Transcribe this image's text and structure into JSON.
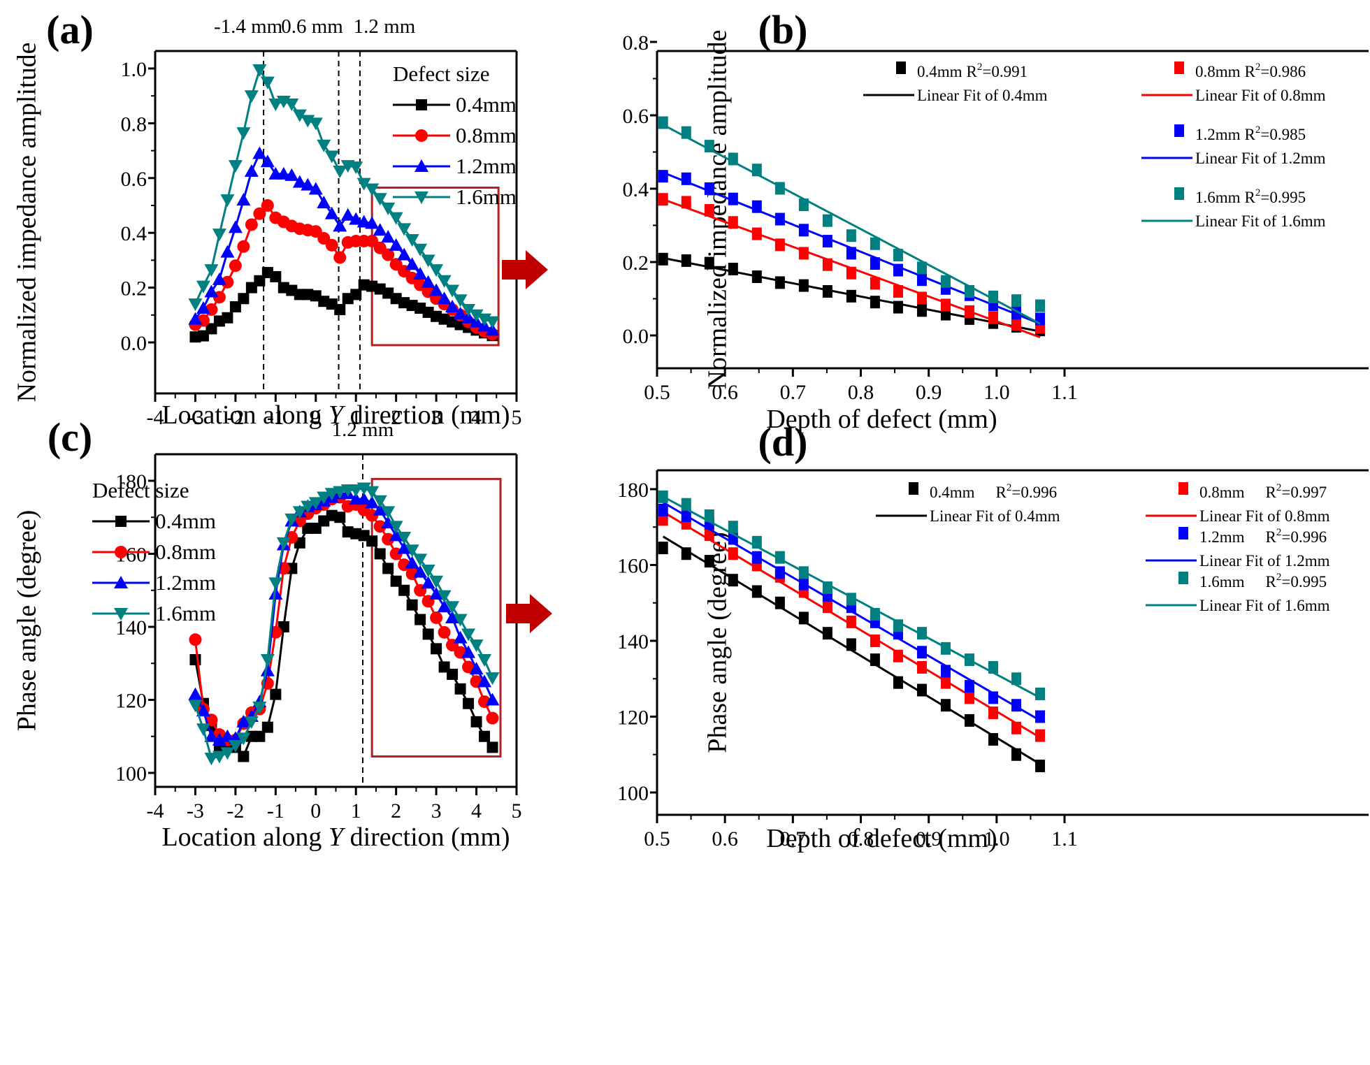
{
  "chart_data": [
    {
      "id": "a",
      "panel_label": "(a)",
      "type": "line",
      "xlabel_pre": "Location along ",
      "xlabel_italic": "Y",
      "xlabel_post": " direction (mm)",
      "ylabel": "Normalized impedance amplitude",
      "xlim": [
        -4,
        5
      ],
      "ylim": [
        -0.12,
        1.12
      ],
      "xticks": [
        -4,
        -3,
        -2,
        -1,
        0,
        1,
        2,
        3,
        4,
        5
      ],
      "yticks": [
        0.0,
        0.2,
        0.4,
        0.6,
        0.8,
        1.0
      ],
      "ytick_labels": [
        "0.0",
        "0.2",
        "0.4",
        "0.6",
        "0.8",
        "1.0"
      ],
      "vlines": [
        {
          "x": -1.3,
          "label": "-1.4 mm"
        },
        {
          "x": 0.57,
          "label": "0.6 mm"
        },
        {
          "x": 1.1,
          "label": "1.2 mm"
        }
      ],
      "highlight_box": {
        "x": [
          1.4,
          4.55
        ],
        "y": [
          -0.01,
          0.565
        ]
      },
      "legend": {
        "title": "Defect size",
        "placement": "top-right"
      },
      "x": [
        -3.0,
        -2.8,
        -2.6,
        -2.4,
        -2.2,
        -2.0,
        -1.8,
        -1.6,
        -1.4,
        -1.2,
        -1.0,
        -0.8,
        -0.6,
        -0.4,
        -0.2,
        0.0,
        0.2,
        0.4,
        0.6,
        0.8,
        1.0,
        1.2,
        1.4,
        1.6,
        1.8,
        2.0,
        2.2,
        2.4,
        2.6,
        2.8,
        3.0,
        3.2,
        3.4,
        3.6,
        3.8,
        4.0,
        4.2,
        4.4
      ],
      "series": [
        {
          "name": "0.4mm",
          "color": "#000000",
          "marker": "square",
          "values": [
            0.02,
            0.024,
            0.05,
            0.078,
            0.09,
            0.13,
            0.16,
            0.2,
            0.225,
            0.255,
            0.24,
            0.2,
            0.19,
            0.175,
            0.175,
            0.17,
            0.15,
            0.14,
            0.12,
            0.16,
            0.175,
            0.21,
            0.205,
            0.195,
            0.18,
            0.16,
            0.145,
            0.135,
            0.125,
            0.11,
            0.095,
            0.085,
            0.075,
            0.065,
            0.055,
            0.045,
            0.035,
            0.025
          ]
        },
        {
          "name": "0.8mm",
          "color": "#ff0000",
          "marker": "circle",
          "values": [
            0.065,
            0.08,
            0.12,
            0.165,
            0.22,
            0.28,
            0.35,
            0.43,
            0.47,
            0.5,
            0.455,
            0.44,
            0.425,
            0.415,
            0.41,
            0.405,
            0.38,
            0.355,
            0.31,
            0.365,
            0.37,
            0.37,
            0.37,
            0.345,
            0.32,
            0.285,
            0.26,
            0.235,
            0.21,
            0.185,
            0.16,
            0.14,
            0.12,
            0.1,
            0.075,
            0.055,
            0.04,
            0.03
          ]
        },
        {
          "name": "1.2mm",
          "color": "#0000ff",
          "marker": "triangle-up",
          "values": [
            0.085,
            0.125,
            0.185,
            0.23,
            0.33,
            0.42,
            0.52,
            0.625,
            0.69,
            0.66,
            0.615,
            0.615,
            0.61,
            0.585,
            0.575,
            0.56,
            0.51,
            0.47,
            0.425,
            0.465,
            0.45,
            0.44,
            0.435,
            0.41,
            0.385,
            0.355,
            0.32,
            0.285,
            0.25,
            0.22,
            0.19,
            0.16,
            0.13,
            0.105,
            0.09,
            0.075,
            0.06,
            0.045
          ]
        },
        {
          "name": "1.6mm",
          "color": "#008080",
          "marker": "triangle-down",
          "values": [
            0.14,
            0.205,
            0.265,
            0.395,
            0.52,
            0.645,
            0.765,
            0.9,
            0.995,
            0.95,
            0.87,
            0.88,
            0.87,
            0.83,
            0.81,
            0.8,
            0.72,
            0.68,
            0.625,
            0.645,
            0.64,
            0.58,
            0.56,
            0.525,
            0.49,
            0.455,
            0.415,
            0.375,
            0.34,
            0.3,
            0.265,
            0.225,
            0.19,
            0.155,
            0.12,
            0.1,
            0.085,
            0.075
          ]
        }
      ]
    },
    {
      "id": "b",
      "panel_label": "(b)",
      "type": "scatter",
      "xlabel": "Depth of defect (mm)",
      "ylabel": "Normalized impedance amplitude",
      "xlim": [
        0.45,
        1.15
      ],
      "ylim": [
        -0.09,
        0.8
      ],
      "xticks": [
        0.5,
        0.6,
        0.7,
        0.8,
        0.9,
        1.0,
        1.1
      ],
      "xtick_labels": [
        "0.5",
        "0.6",
        "0.7",
        "0.8",
        "0.9",
        "1.0",
        "1.1"
      ],
      "yticks": [
        0.0,
        0.2,
        0.4,
        0.6,
        0.8
      ],
      "ytick_labels": [
        "0.0",
        "0.2",
        "0.4",
        "0.6",
        "0.8"
      ],
      "x": [
        0.509,
        0.543,
        0.577,
        0.612,
        0.647,
        0.681,
        0.716,
        0.751,
        0.786,
        0.821,
        0.855,
        0.89,
        0.925,
        0.96,
        0.995,
        1.029,
        1.064
      ],
      "series": [
        {
          "name": "0.4mm",
          "r2": "0.991",
          "color": "#000000",
          "values": [
            0.208,
            0.204,
            0.197,
            0.181,
            0.16,
            0.144,
            0.136,
            0.12,
            0.107,
            0.091,
            0.077,
            0.068,
            0.058,
            0.046,
            0.035,
            0.025,
            0.015
          ],
          "fit": [
            0.211,
            0.011
          ]
        },
        {
          "name": "0.8mm",
          "r2": "0.986",
          "color": "#ff0000",
          "values": [
            0.371,
            0.363,
            0.341,
            0.308,
            0.277,
            0.247,
            0.224,
            0.193,
            0.17,
            0.142,
            0.12,
            0.102,
            0.083,
            0.065,
            0.048,
            0.03,
            0.022
          ],
          "fit": [
            0.371,
            -0.005
          ]
        },
        {
          "name": "1.2mm",
          "r2": "0.985",
          "color": "#0000ff",
          "values": [
            0.434,
            0.427,
            0.4,
            0.372,
            0.351,
            0.317,
            0.287,
            0.257,
            0.224,
            0.196,
            0.178,
            0.152,
            0.128,
            0.111,
            0.083,
            0.061,
            0.045
          ],
          "fit": [
            0.444,
            0.032
          ]
        },
        {
          "name": "1.6mm",
          "r2": "0.995",
          "color": "#008080",
          "values": [
            0.58,
            0.553,
            0.516,
            0.481,
            0.451,
            0.401,
            0.356,
            0.313,
            0.272,
            0.25,
            0.219,
            0.184,
            0.147,
            0.12,
            0.105,
            0.095,
            0.081
          ],
          "fit": [
            0.574,
            0.032
          ]
        }
      ],
      "legend_fit_prefix": "Linear Fit of ",
      "legend_r2_prefix": "R",
      "legend_r2_sup": "2",
      "legend_placement": "top-right"
    },
    {
      "id": "c",
      "panel_label": "(c)",
      "type": "line",
      "xlabel_pre": "Location along ",
      "xlabel_italic": "Y",
      "xlabel_post": " direction (mm)",
      "ylabel": "Phase angle (degree)",
      "xlim": [
        -4,
        5
      ],
      "ylim": [
        96,
        184
      ],
      "xticks": [
        -4,
        -3,
        -2,
        -1,
        0,
        1,
        2,
        3,
        4,
        5
      ],
      "yticks": [
        100,
        120,
        140,
        160,
        180
      ],
      "ytick_labels": [
        "100",
        "120",
        "140",
        "160",
        "180"
      ],
      "vlines": [
        {
          "x": 1.17,
          "label": "1.2 mm"
        }
      ],
      "highlight_box": {
        "x": [
          1.4,
          4.6
        ],
        "y": [
          104.5,
          180.5
        ]
      },
      "legend": {
        "title": "Defect size",
        "placement": "top-left"
      },
      "x": [
        -3.0,
        -2.8,
        -2.6,
        -2.4,
        -2.2,
        -2.0,
        -1.8,
        -1.6,
        -1.4,
        -1.2,
        -1.0,
        -0.8,
        -0.6,
        -0.4,
        -0.2,
        0.0,
        0.2,
        0.4,
        0.6,
        0.8,
        1.0,
        1.2,
        1.4,
        1.6,
        1.8,
        2.0,
        2.2,
        2.4,
        2.6,
        2.8,
        3.0,
        3.2,
        3.4,
        3.6,
        3.8,
        4.0,
        4.2,
        4.4
      ],
      "series": [
        {
          "name": "0.4mm",
          "color": "#000000",
          "marker": "square",
          "values": [
            131,
            119,
            113,
            107.5,
            107,
            107,
            104.5,
            110,
            110,
            112.5,
            121.5,
            140,
            156,
            163,
            167,
            167,
            169,
            170.5,
            170,
            166,
            165.5,
            165,
            163.5,
            160,
            156,
            152.5,
            150,
            146,
            142,
            138,
            134,
            129,
            127,
            123,
            119,
            114,
            110,
            107
          ]
        },
        {
          "name": "0.8mm",
          "color": "#ff0000",
          "marker": "circle",
          "values": [
            136.5,
            117.5,
            114.5,
            110.5,
            109,
            109,
            113.5,
            116.5,
            117.5,
            124.5,
            138.5,
            156,
            164.5,
            169,
            171,
            172.5,
            173.5,
            175,
            175.5,
            173,
            173.5,
            172,
            170.5,
            167.5,
            164,
            160,
            157,
            154.5,
            150,
            147,
            142.5,
            138.5,
            135,
            133,
            129,
            125,
            119.5,
            115
          ]
        },
        {
          "name": "1.2mm",
          "color": "#0000ff",
          "marker": "triangle-up",
          "values": [
            121.5,
            117,
            110,
            109,
            110,
            109.5,
            114,
            115.5,
            119.5,
            128,
            149,
            162.5,
            169,
            171.5,
            173,
            173.5,
            174.5,
            175.5,
            176.5,
            176.5,
            175,
            175,
            174,
            172,
            168.5,
            165,
            161.5,
            157.5,
            155,
            152,
            149,
            145.5,
            142.5,
            137,
            133,
            128.5,
            125,
            120
          ]
        },
        {
          "name": "1.6mm",
          "color": "#008080",
          "marker": "triangle-down",
          "values": [
            118.5,
            112,
            104,
            104.5,
            105.5,
            107.5,
            109.5,
            114,
            118,
            131,
            152,
            163,
            169.5,
            171.5,
            173,
            174,
            175.5,
            176.5,
            177,
            177.5,
            177.5,
            178,
            177,
            174.5,
            171.5,
            167.5,
            164.5,
            161,
            158.5,
            155.5,
            152.5,
            148.5,
            145.5,
            142,
            138,
            135,
            131,
            126
          ]
        }
      ]
    },
    {
      "id": "d",
      "panel_label": "(d)",
      "type": "scatter",
      "xlabel": "Depth of defect (mm)",
      "ylabel": "Phase angle (degree)",
      "xlim": [
        0.45,
        1.15
      ],
      "ylim": [
        100,
        190
      ],
      "xticks": [
        0.5,
        0.6,
        0.7,
        0.8,
        0.9,
        1.0,
        1.1
      ],
      "xtick_labels": [
        "0.5",
        "0.6",
        "0.7",
        "0.8",
        "0.9",
        "1.0",
        "1.1"
      ],
      "yticks": [
        100,
        120,
        140,
        160,
        180
      ],
      "ytick_labels": [
        "100",
        "120",
        "140",
        "160",
        "180"
      ],
      "x": [
        0.509,
        0.543,
        0.577,
        0.612,
        0.647,
        0.681,
        0.716,
        0.751,
        0.786,
        0.821,
        0.855,
        0.89,
        0.925,
        0.96,
        0.995,
        1.029,
        1.064
      ],
      "series": [
        {
          "name": "0.4mm",
          "r2": "0.996",
          "color": "#000000",
          "values": [
            164.5,
            163,
            161,
            156,
            153,
            150,
            146,
            142,
            139,
            135,
            129,
            127,
            123,
            119,
            114,
            110,
            107
          ],
          "fit": [
            167.5,
            107.5
          ]
        },
        {
          "name": "0.8mm",
          "r2": "0.997",
          "color": "#ff0000",
          "values": [
            172,
            171,
            168,
            163,
            160,
            157,
            153,
            149,
            145,
            140,
            136,
            133,
            129,
            125,
            121,
            117,
            115
          ],
          "fit": [
            174,
            114.5
          ]
        },
        {
          "name": "1.2mm",
          "r2": "0.996",
          "color": "#0000ff",
          "values": [
            174.5,
            173,
            171,
            167,
            162,
            158,
            155,
            152,
            149,
            145,
            142,
            137,
            132,
            128,
            125,
            123,
            120
          ],
          "fit": [
            176.5,
            119
          ]
        },
        {
          "name": "1.6mm",
          "r2": "0.995",
          "color": "#008080",
          "values": [
            178,
            176,
            173,
            170,
            166,
            162,
            158,
            154,
            151,
            147,
            144,
            142,
            138,
            135,
            133,
            130,
            126
          ],
          "fit": [
            178,
            125
          ]
        }
      ],
      "legend_fit_prefix": "Linear Fit of ",
      "legend_r2_prefix": "R",
      "legend_r2_sup": "2",
      "legend_placement": "top-right"
    }
  ],
  "arrows": [
    {
      "from": "a",
      "to": "b",
      "color": "#c00000"
    },
    {
      "from": "c",
      "to": "d",
      "color": "#c00000"
    }
  ],
  "highlight_color": "#b22222"
}
